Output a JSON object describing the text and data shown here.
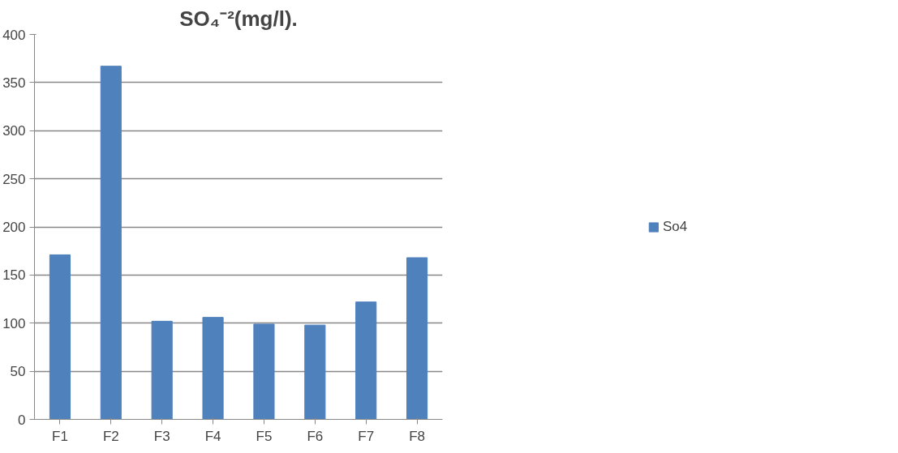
{
  "chart_data": {
    "type": "bar",
    "title": "SO₄⁻²(mg/l).",
    "categories": [
      "F1",
      "F2",
      "F3",
      "F4",
      "F5",
      "F6",
      "F7",
      "F8"
    ],
    "series": [
      {
        "name": "So4",
        "color": "#4f81bd",
        "values": [
          171,
          367,
          102,
          106,
          99,
          98,
          122,
          168
        ]
      }
    ],
    "ylim": [
      0,
      400
    ],
    "yticks": [
      0,
      50,
      100,
      150,
      200,
      250,
      300,
      350,
      400
    ],
    "grid": "y",
    "legend": "right"
  }
}
